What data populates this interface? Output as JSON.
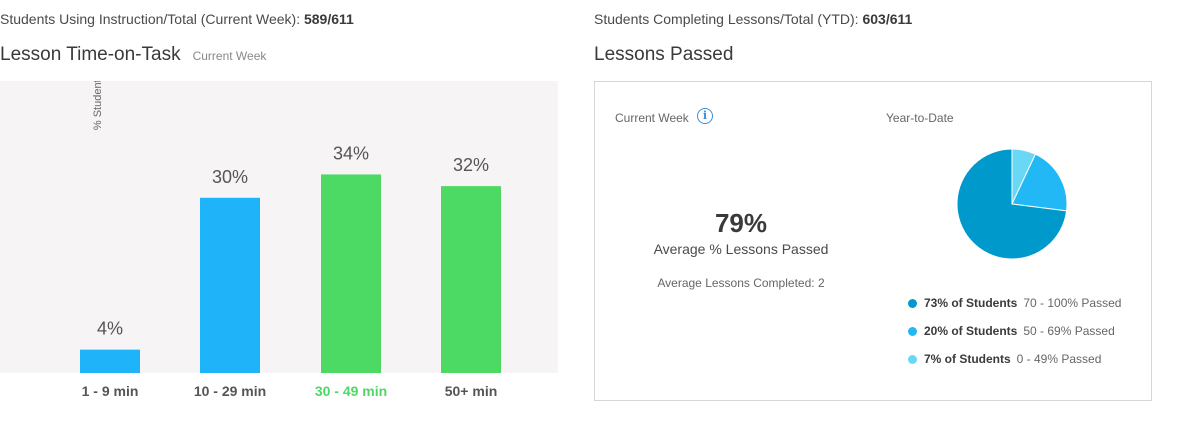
{
  "header": {
    "left_stat_label": "Students Using Instruction/Total (Current Week):",
    "left_stat_value": "589/611",
    "right_stat_label": "Students Completing Lessons/Total (YTD):",
    "right_stat_value": "603/611"
  },
  "time_on_task": {
    "title": "Lesson Time-on-Task",
    "subtitle": "Current Week"
  },
  "chart_data": [
    {
      "type": "bar",
      "title": "Lesson Time-on-Task",
      "subtitle": "Current Week",
      "categories": [
        "1 - 9 min",
        "10 - 29 min",
        "30 - 49 min",
        "50+ min"
      ],
      "values": [
        4,
        30,
        34,
        32
      ],
      "value_labels": [
        "4%",
        "30%",
        "34%",
        "32%"
      ],
      "bar_colors": [
        "#1fb4f9",
        "#1fb4f9",
        "#4cd964",
        "#4cd964"
      ],
      "category_label_colors": [
        "#555555",
        "#555555",
        "#4cd964",
        "#555555"
      ],
      "ylabel": "% Students",
      "xlabel": "",
      "ylim": [
        0,
        50
      ],
      "grid": false,
      "background": "#f6f4f4"
    },
    {
      "type": "pie",
      "title": "Year-to-Date",
      "slices": [
        {
          "value": 73,
          "label": "73% of Students",
          "range": "70 - 100% Passed",
          "color": "#0099cc"
        },
        {
          "value": 20,
          "label": "20% of Students",
          "range": "50 - 69% Passed",
          "color": "#22b8f5"
        },
        {
          "value": 7,
          "label": "7% of Students",
          "range": "0 - 49% Passed",
          "color": "#6ad8f5"
        }
      ],
      "legend_position": "bottom"
    }
  ],
  "lessons_passed": {
    "title": "Lessons Passed",
    "current_week_label": "Current Week",
    "info_icon": "info-icon",
    "info_glyph": "i",
    "ytd_label": "Year-to-Date",
    "avg_percent": "79%",
    "avg_percent_label": "Average % Lessons Passed",
    "avg_completed_label": "Average Lessons Completed:",
    "avg_completed_value": "2"
  }
}
